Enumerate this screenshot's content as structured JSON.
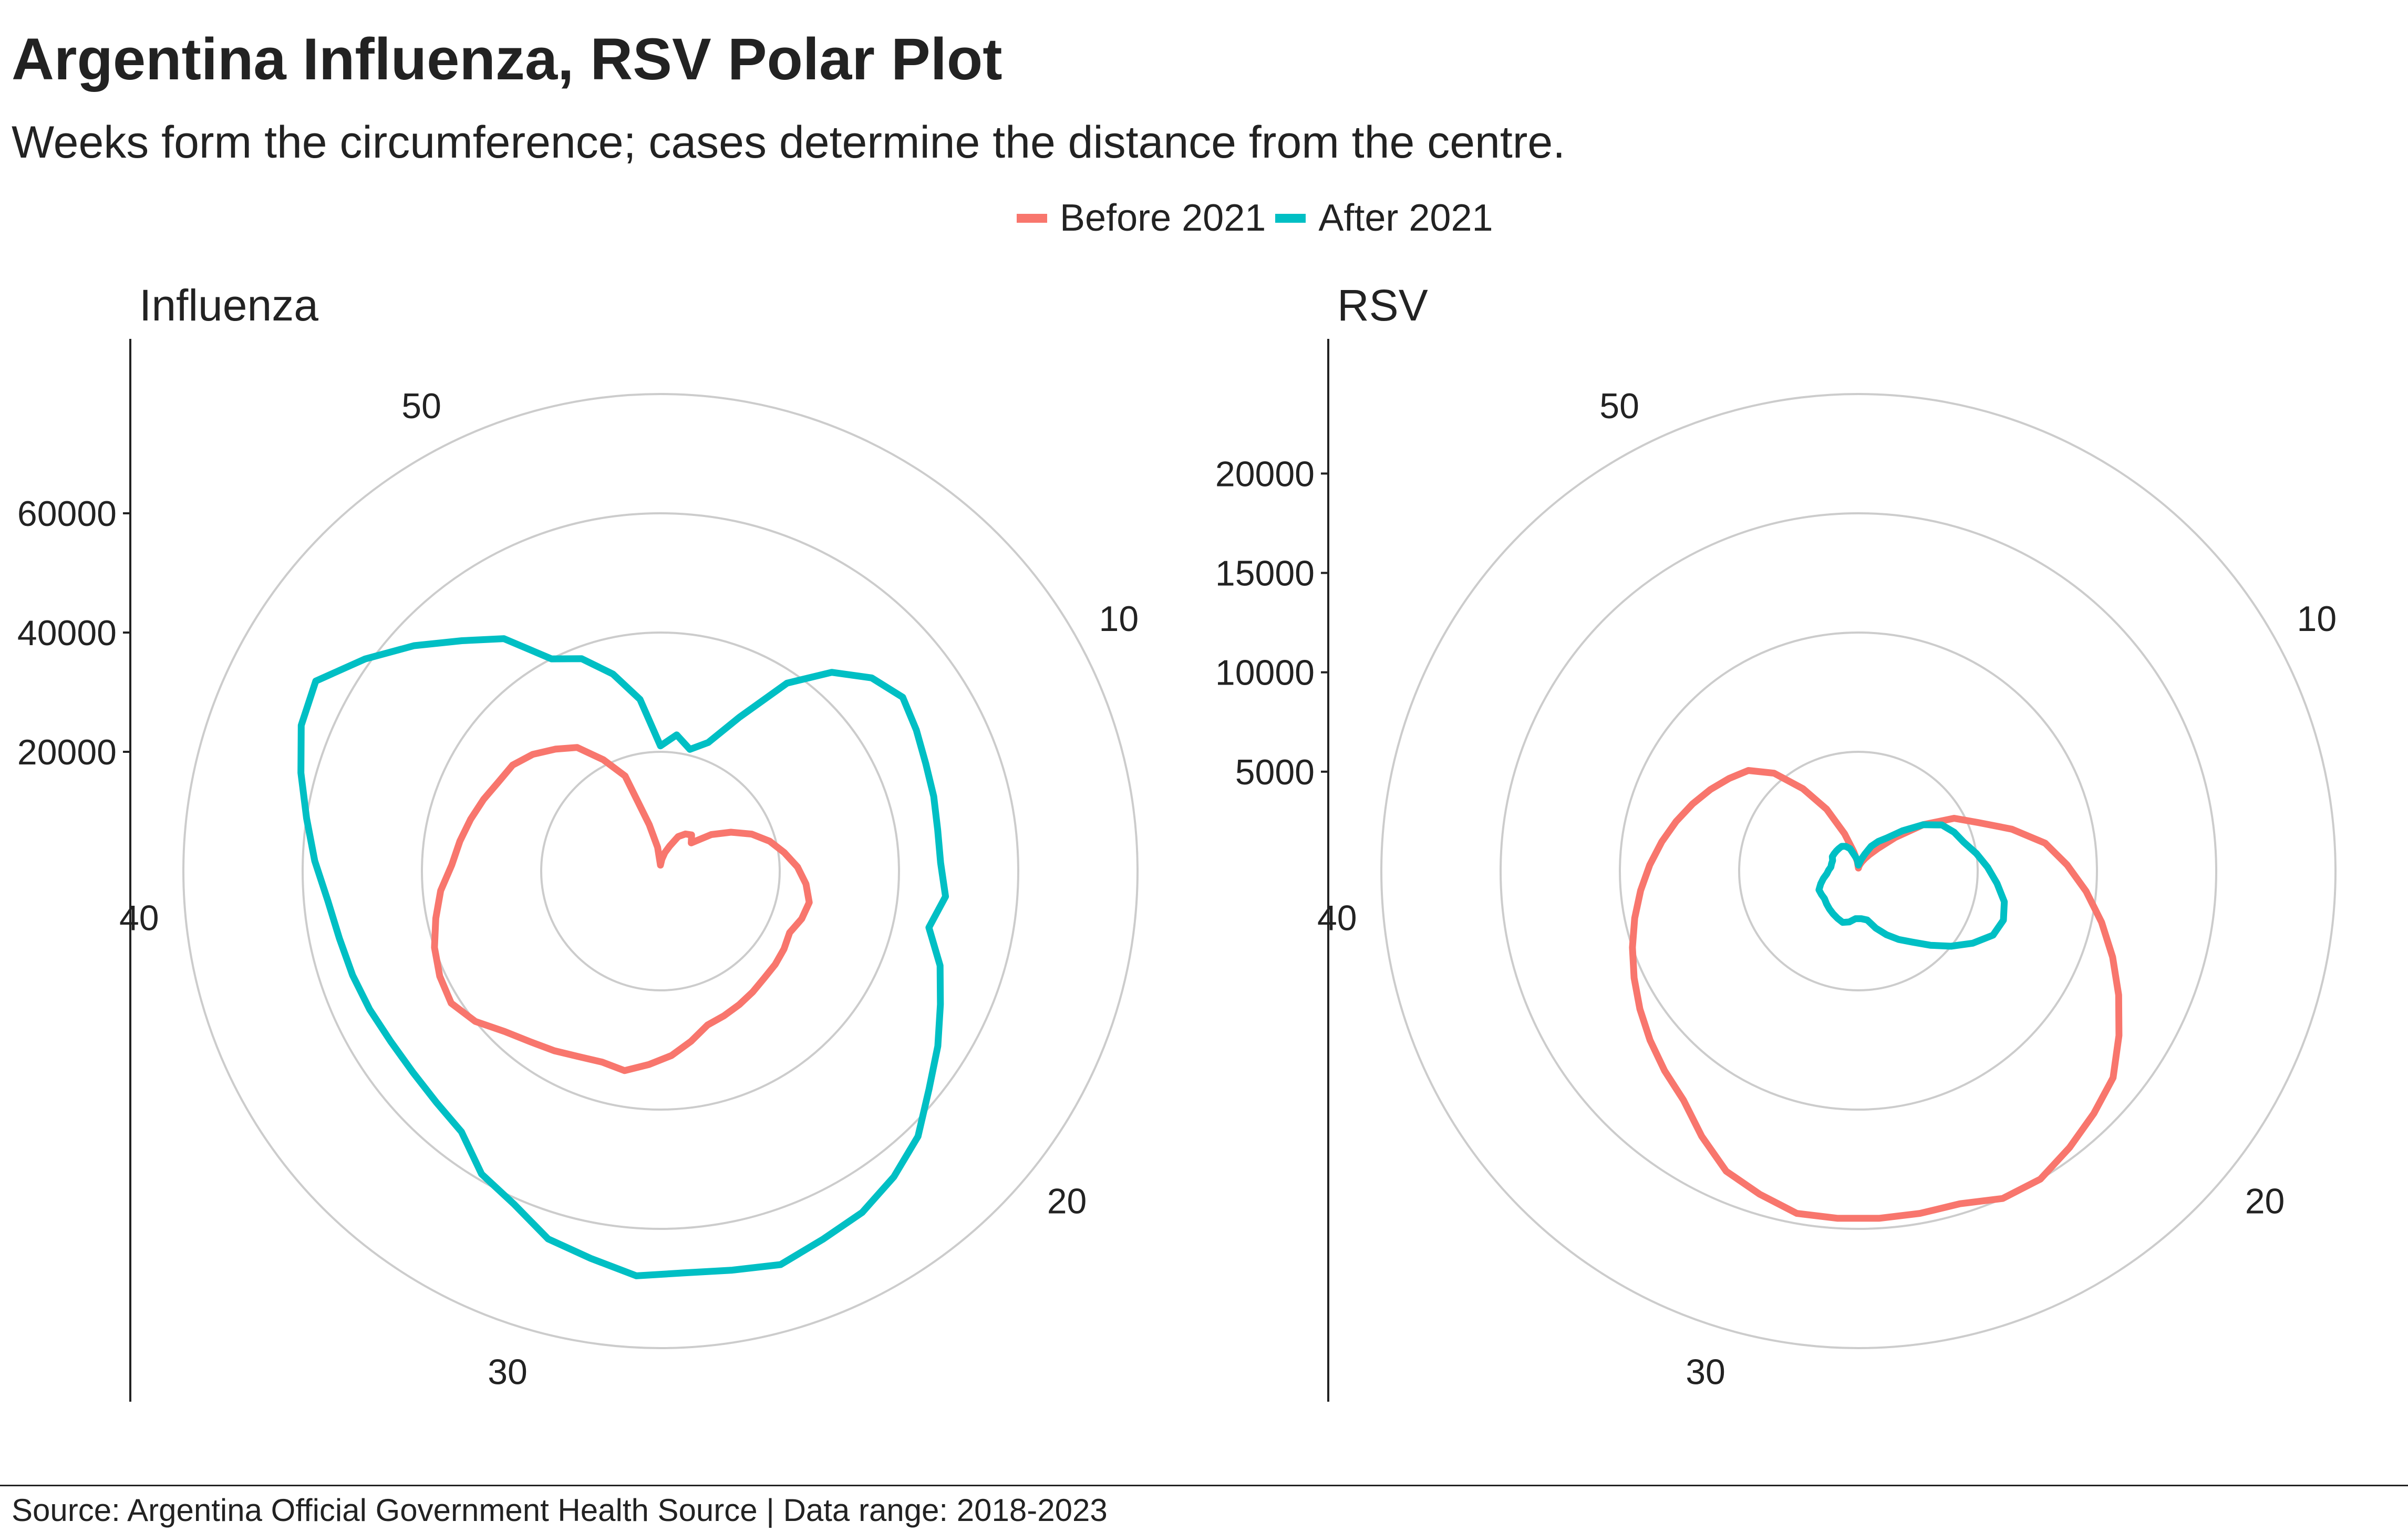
{
  "title": "Argentina Influenza, RSV Polar Plot",
  "subtitle": "Weeks form the circumference; cases determine the distance from the centre.",
  "source": "Source: Argentina Official Government Health Source | Data range: 2018-2023",
  "colors": {
    "before": "#F8766D",
    "after": "#00BFC4",
    "grid": "#CCCCCC",
    "axis": "#222222"
  },
  "legend": [
    {
      "key": "before",
      "label": "Before 2021"
    },
    {
      "key": "after",
      "label": "After 2021"
    }
  ],
  "chart_data": [
    {
      "type": "line",
      "coord": "polar",
      "title": "Influenza",
      "theta_ticks": [
        "10",
        "20",
        "30",
        "40",
        "50"
      ],
      "theta_ticks_values": [
        10,
        20,
        30,
        40,
        50
      ],
      "weeks_per_turn": 53,
      "r_ticks": [
        "20000",
        "40000",
        "60000"
      ],
      "r_ticks_values": [
        20000,
        40000,
        60000
      ],
      "rlim": [
        0,
        80000
      ],
      "grid": true,
      "series": [
        {
          "name": "Before 2021",
          "key": "before",
          "x": [
            1,
            2,
            3,
            4,
            5,
            6,
            7,
            8,
            9,
            10,
            11,
            12,
            13,
            14,
            15,
            16,
            17,
            18,
            19,
            20,
            21,
            22,
            23,
            24,
            25,
            26,
            27,
            28,
            29,
            30,
            31,
            32,
            33,
            34,
            35,
            36,
            37,
            38,
            39,
            40,
            41,
            42,
            43,
            44,
            45,
            46,
            47,
            48,
            49,
            50,
            51,
            52,
            53
          ],
          "y": [
            1000,
            2000,
            3200,
            4500,
            6500,
            7500,
            8000,
            7000,
            10500,
            13500,
            16500,
            19000,
            21000,
            23000,
            24500,
            25500,
            25000,
            24000,
            24500,
            24800,
            25000,
            25500,
            26000,
            26500,
            27000,
            29000,
            31000,
            32500,
            34000,
            33500,
            34000,
            35000,
            36000,
            37500,
            40000,
            41500,
            41000,
            40000,
            38500,
            37000,
            35000,
            34000,
            33000,
            32000,
            31000,
            30500,
            29000,
            27000,
            25000,
            21000,
            17000,
            8000,
            4000
          ]
        },
        {
          "name": "After 2021",
          "key": "after",
          "x": [
            1,
            2,
            3,
            4,
            5,
            6,
            7,
            8,
            9,
            10,
            11,
            12,
            13,
            14,
            15,
            16,
            17,
            18,
            19,
            20,
            21,
            22,
            23,
            24,
            25,
            26,
            27,
            28,
            29,
            30,
            31,
            32,
            33,
            34,
            35,
            36,
            37,
            38,
            39,
            40,
            41,
            42,
            43,
            44,
            45,
            46,
            47,
            48,
            49,
            50,
            51,
            52,
            53
          ],
          "y": [
            21000,
            23000,
            21000,
            23000,
            29000,
            38000,
            44000,
            48000,
            50000,
            49000,
            48000,
            47500,
            47000,
            47000,
            48000,
            46000,
            49500,
            52000,
            55000,
            58000,
            62000,
            64500,
            66500,
            67500,
            69000,
            68000,
            67500,
            68000,
            66000,
            64500,
            61000,
            59000,
            55000,
            54000,
            53500,
            53500,
            54000,
            54500,
            55000,
            56000,
            58000,
            60000,
            62500,
            65000,
            66000,
            61000,
            56000,
            51000,
            47000,
            40000,
            38000,
            34000,
            29000
          ]
        }
      ]
    },
    {
      "type": "line",
      "coord": "polar",
      "title": "RSV",
      "theta_ticks": [
        "10",
        "20",
        "30",
        "40",
        "50"
      ],
      "theta_ticks_values": [
        10,
        20,
        30,
        40,
        50
      ],
      "weeks_per_turn": 53,
      "r_ticks": [
        "5000",
        "10000",
        "15000",
        "20000"
      ],
      "r_ticks_values": [
        5000,
        10000,
        15000,
        20000
      ],
      "rlim": [
        0,
        24000
      ],
      "grid": true,
      "series": [
        {
          "name": "Before 2021",
          "key": "before",
          "x": [
            1,
            2,
            3,
            4,
            5,
            6,
            7,
            8,
            9,
            10,
            11,
            12,
            13,
            14,
            15,
            16,
            17,
            18,
            19,
            20,
            21,
            22,
            23,
            24,
            25,
            26,
            27,
            28,
            29,
            30,
            31,
            32,
            33,
            34,
            35,
            36,
            37,
            38,
            39,
            40,
            41,
            42,
            43,
            44,
            45,
            46,
            47,
            48,
            49,
            50,
            51,
            52,
            53
          ],
          "y": [
            150,
            250,
            350,
            500,
            700,
            1000,
            1500,
            2500,
            4000,
            5500,
            6500,
            8000,
            9500,
            10500,
            11500,
            12500,
            13500,
            14500,
            15500,
            16500,
            17000,
            17500,
            18000,
            18000,
            17500,
            17500,
            17500,
            17500,
            17500,
            17000,
            16500,
            15500,
            14500,
            14000,
            13500,
            13000,
            12500,
            12000,
            11500,
            11000,
            10500,
            10000,
            9500,
            9000,
            8500,
            8000,
            7500,
            6500,
            5000,
            3500,
            2000,
            1000,
            500
          ]
        },
        {
          "name": "After 2021",
          "key": "after",
          "x": [
            1,
            2,
            3,
            4,
            5,
            6,
            7,
            8,
            9,
            10,
            11,
            12,
            13,
            14,
            15,
            16,
            17,
            18,
            19,
            20,
            21,
            22,
            23,
            24,
            25,
            26,
            27,
            28,
            29,
            30,
            31,
            32,
            33,
            34,
            35,
            36,
            37,
            38,
            39,
            40,
            41,
            42,
            43,
            44,
            45,
            46,
            47,
            48,
            49,
            50,
            51,
            52,
            53
          ],
          "y": [
            300,
            400,
            600,
            900,
            1400,
            1800,
            2200,
            3000,
            4000,
            4800,
            5200,
            5500,
            6000,
            6500,
            7000,
            7500,
            7700,
            7500,
            6800,
            6000,
            5200,
            4500,
            4000,
            3500,
            3000,
            2500,
            2400,
            2400,
            2600,
            2700,
            2600,
            2500,
            2400,
            2300,
            2200,
            2200,
            2200,
            2000,
            1800,
            1600,
            1500,
            1400,
            1400,
            1400,
            1500,
            1500,
            1500,
            1500,
            1500,
            1400,
            1200,
            800,
            600
          ]
        }
      ]
    }
  ]
}
